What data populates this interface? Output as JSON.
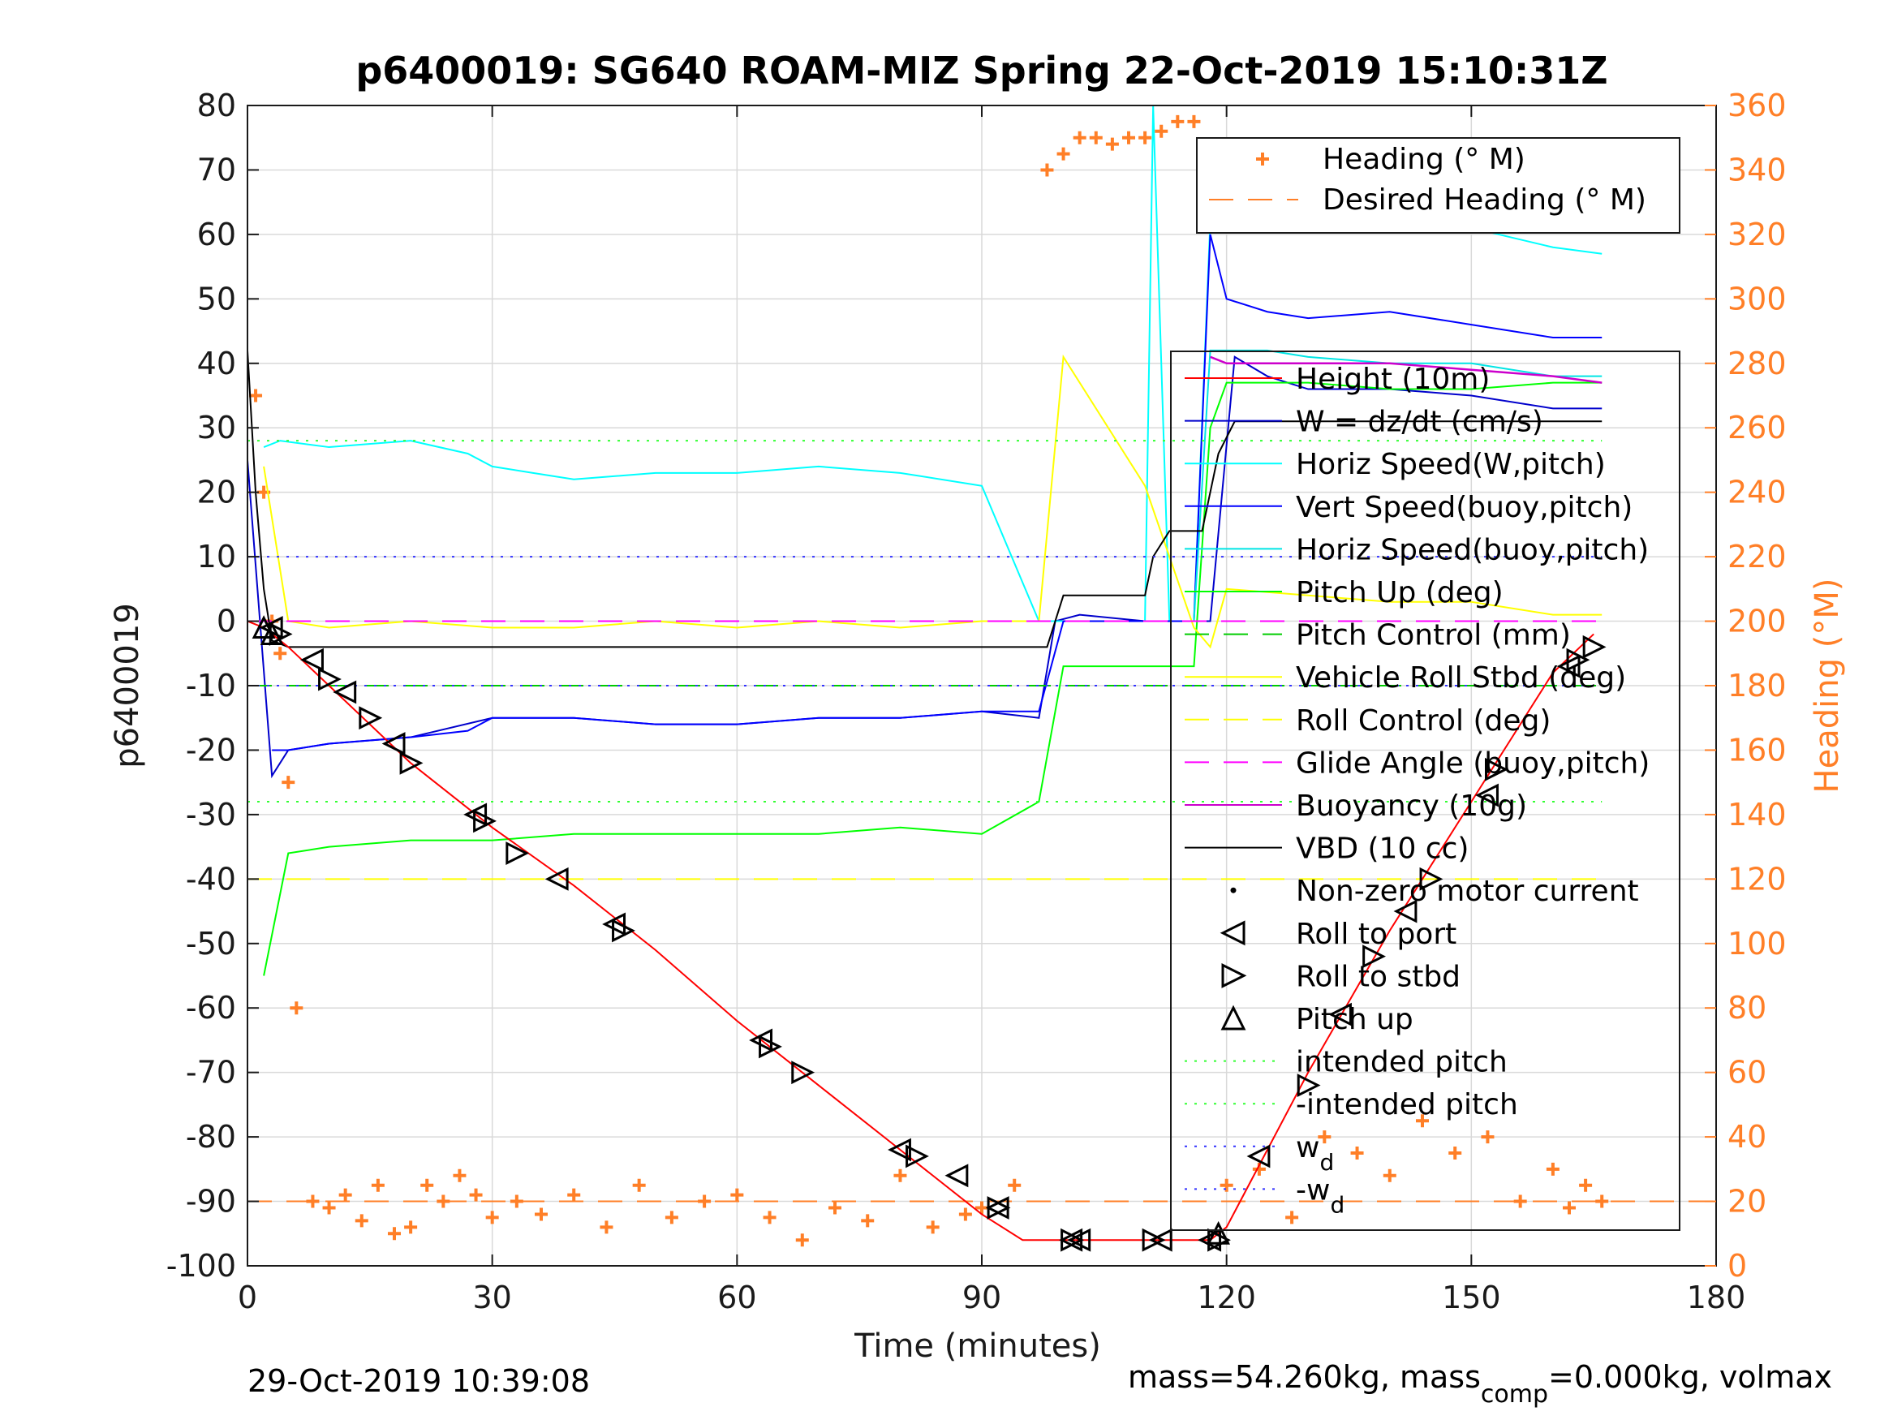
{
  "chart_data": {
    "type": "line",
    "title": "p6400019: SG640 ROAM-MIZ Spring 22-Oct-2019 15:10:31Z",
    "xlabel": "Time (minutes)",
    "ylabel": "p6400019",
    "ylabel_right": "Heading (°M)",
    "xlim": [
      0,
      180
    ],
    "ylim": [
      -100,
      80
    ],
    "ylim_right": [
      0,
      360
    ],
    "x_ticks": [
      0,
      30,
      60,
      90,
      120,
      150,
      180
    ],
    "y_ticks": [
      80,
      70,
      60,
      50,
      40,
      30,
      20,
      10,
      0,
      -10,
      -20,
      -30,
      -40,
      -50,
      -60,
      -70,
      -80,
      -90,
      -100
    ],
    "y_right_ticks": [
      360,
      340,
      320,
      300,
      280,
      260,
      240,
      220,
      200,
      180,
      160,
      140,
      120,
      100,
      80,
      60,
      40,
      20,
      0
    ],
    "grid": true,
    "colors": {
      "height": "#ff0000",
      "w": "#0000cc",
      "horiz_w": "#00ffff",
      "vert_buoy": "#0000ff",
      "horiz_buoy": "#00e5e5",
      "pitch_up": "#00ff00",
      "pitch_control": "#00cc00",
      "roll": "#ffff00",
      "glide": "#ff00ff",
      "buoyancy": "#cc00cc",
      "vbd": "#000000",
      "heading": "#ff7f27",
      "intended_pitch": "#33ff33",
      "wd": "#3333ff"
    },
    "series": [
      {
        "name": "Height (10m)",
        "x": [
          0,
          2,
          5,
          10,
          20,
          30,
          40,
          50,
          60,
          70,
          80,
          90,
          95,
          100,
          110,
          118,
          120,
          125,
          130,
          140,
          150,
          160,
          165
        ],
        "y": [
          0,
          -1,
          -4,
          -10,
          -22,
          -32,
          -41,
          -51,
          -62,
          -72,
          -82,
          -92,
          -96,
          -96,
          -96,
          -96,
          -94,
          -82,
          -70,
          -48,
          -28,
          -8,
          -2
        ]
      },
      {
        "name": "W = dz/dt (cm/s)",
        "x": [
          0,
          3,
          5,
          10,
          20,
          30,
          40,
          50,
          60,
          70,
          80,
          90,
          97,
          99,
          102,
          110,
          115,
          118,
          121,
          125,
          130,
          140,
          150,
          160,
          166
        ],
        "y": [
          25,
          -24,
          -20,
          -19,
          -18,
          -15,
          -15,
          -16,
          -16,
          -15,
          -15,
          -14,
          -15,
          0,
          1,
          0,
          0,
          0,
          41,
          38,
          36,
          36,
          35,
          33,
          33
        ]
      },
      {
        "name": "Horiz Speed(W,pitch)",
        "x": [
          2,
          4,
          10,
          20,
          27,
          30,
          35,
          40,
          50,
          60,
          70,
          80,
          90,
          97,
          100,
          110,
          111,
          113,
          116,
          118,
          120,
          125,
          130,
          140,
          150,
          160,
          166
        ],
        "y": [
          27,
          28,
          27,
          28,
          26,
          24,
          23,
          22,
          23,
          23,
          24,
          23,
          21,
          0,
          0,
          0,
          80,
          0,
          0,
          62,
          63,
          62,
          62,
          62,
          61,
          58,
          57
        ]
      },
      {
        "name": "Vert Speed(buoy,pitch)",
        "x": [
          3,
          5,
          10,
          20,
          27,
          30,
          40,
          50,
          60,
          70,
          80,
          90,
          97,
          100,
          110,
          116,
          118,
          120,
          125,
          130,
          140,
          150,
          160,
          166
        ],
        "y": [
          -20,
          -20,
          -19,
          -18,
          -17,
          -15,
          -15,
          -16,
          -16,
          -15,
          -15,
          -14,
          -14,
          0,
          0,
          0,
          60,
          50,
          48,
          47,
          48,
          46,
          44,
          44
        ]
      },
      {
        "name": "Horiz Speed(buoy,pitch)",
        "x": [
          116,
          118,
          120,
          125,
          130,
          140,
          150,
          160,
          166
        ],
        "y": [
          0,
          42,
          42,
          42,
          41,
          40,
          40,
          38,
          38
        ]
      },
      {
        "name": "Pitch Up (deg)",
        "x": [
          2,
          5,
          10,
          20,
          30,
          40,
          50,
          60,
          70,
          80,
          90,
          97,
          100,
          110,
          116,
          118,
          120,
          130,
          140,
          150,
          160,
          166
        ],
        "y": [
          -55,
          -36,
          -35,
          -34,
          -34,
          -33,
          -33,
          -33,
          -33,
          -32,
          -33,
          -28,
          -7,
          -7,
          -7,
          30,
          37,
          37,
          36,
          36,
          37,
          37
        ]
      },
      {
        "name": "Pitch Control (mm)",
        "x": [
          0,
          166
        ],
        "y": [
          -10,
          -10
        ]
      },
      {
        "name": "Vehicle Roll Stbd (deg)",
        "x": [
          2,
          5,
          10,
          20,
          30,
          40,
          50,
          60,
          70,
          80,
          90,
          97,
          100,
          110,
          116,
          118,
          120,
          130,
          140,
          150,
          160,
          166
        ],
        "y": [
          24,
          0,
          -1,
          0,
          -1,
          -1,
          0,
          -1,
          0,
          -1,
          0,
          0,
          41,
          21,
          -1,
          -4,
          5,
          4,
          3,
          3,
          1,
          1
        ]
      },
      {
        "name": "Roll Control (deg)",
        "x": [
          0,
          166
        ],
        "y": [
          -40,
          -40
        ]
      },
      {
        "name": "Glide Angle (buoy,pitch)",
        "x": [
          0,
          166
        ],
        "y": [
          0,
          0
        ]
      },
      {
        "name": "Buoyancy (10g)",
        "x": [
          118,
          120,
          140,
          150,
          160,
          166
        ],
        "y": [
          41,
          40,
          40,
          39,
          38,
          37
        ]
      },
      {
        "name": "VBD (10 cc)",
        "x": [
          0,
          1,
          2,
          3,
          5,
          98,
          100,
          110,
          111,
          113,
          117,
          118,
          119,
          121,
          125,
          130,
          140,
          150,
          160,
          166
        ],
        "y": [
          42,
          20,
          5,
          -3,
          -4,
          -4,
          4,
          4,
          10,
          14,
          14,
          20,
          26,
          31,
          31,
          31,
          31,
          31,
          31,
          31
        ]
      },
      {
        "name": "Non-zero motor current",
        "x": [],
        "y": []
      },
      {
        "name": "Roll to port",
        "x": [
          3,
          8,
          12,
          18,
          28,
          38,
          45,
          63,
          80,
          87,
          92,
          101,
          102,
          112,
          118,
          124,
          134,
          142,
          152,
          162
        ],
        "y": [
          -1,
          -6,
          -11,
          -19,
          -30,
          -40,
          -47,
          -65,
          -82,
          -86,
          -91,
          -96,
          -96,
          -96,
          -96,
          -83,
          -61,
          -45,
          -27,
          -7
        ]
      },
      {
        "name": "Roll to stbd",
        "x": [
          4,
          10,
          15,
          20,
          29,
          33,
          46,
          64,
          68,
          82,
          92,
          101,
          111,
          119,
          130,
          138,
          145,
          153,
          163,
          165
        ],
        "y": [
          -2,
          -9,
          -15,
          -22,
          -31,
          -36,
          -48,
          -66,
          -70,
          -83,
          -91,
          -96,
          -96,
          -96,
          -72,
          -52,
          -40,
          -23,
          -6,
          -4
        ]
      },
      {
        "name": "Pitch up",
        "x": [
          2,
          3,
          119
        ],
        "y": [
          -1,
          -2,
          -95
        ]
      },
      {
        "name": "intended pitch",
        "x": [
          0,
          166
        ],
        "y": [
          28,
          28
        ]
      },
      {
        "name": "-intended pitch",
        "x": [
          0,
          166
        ],
        "y": [
          -28,
          -28
        ]
      },
      {
        "name": "w_d",
        "x": [
          0,
          166
        ],
        "y": [
          10,
          10
        ]
      },
      {
        "name": "-w_d",
        "x": [
          0,
          166
        ],
        "y": [
          -10,
          -10
        ]
      }
    ],
    "heading": {
      "name": "Heading (° M)",
      "x": [
        1,
        2,
        3,
        4,
        5,
        6,
        8,
        10,
        12,
        14,
        16,
        18,
        20,
        22,
        24,
        26,
        28,
        30,
        33,
        36,
        40,
        44,
        48,
        52,
        56,
        60,
        64,
        68,
        72,
        76,
        80,
        84,
        88,
        90,
        94,
        98,
        100,
        102,
        104,
        106,
        108,
        110,
        112,
        114,
        116,
        120,
        124,
        128,
        132,
        136,
        140,
        144,
        148,
        152,
        156,
        160,
        162,
        164,
        166
      ],
      "y": [
        270,
        240,
        200,
        190,
        150,
        80,
        20,
        18,
        22,
        14,
        25,
        10,
        12,
        25,
        20,
        28,
        22,
        15,
        20,
        16,
        22,
        12,
        25,
        15,
        20,
        22,
        15,
        8,
        18,
        14,
        28,
        12,
        16,
        18,
        25,
        340,
        345,
        350,
        350,
        348,
        350,
        350,
        352,
        355,
        355,
        25,
        30,
        15,
        40,
        35,
        28,
        45,
        35,
        40,
        20,
        30,
        18,
        25,
        20
      ]
    },
    "desired_heading": {
      "name": "Desired Heading (° M)",
      "value": 20
    },
    "legend_top": [
      "Heading (° M)",
      "Desired Heading (° M)"
    ],
    "legend_main": [
      "Height (10m)",
      "W = dz/dt (cm/s)",
      "Horiz Speed(W,pitch)",
      "Vert Speed(buoy,pitch)",
      "Horiz Speed(buoy,pitch)",
      "Pitch Up (deg)",
      "Pitch Control (mm)",
      "Vehicle Roll Stbd (deg)",
      "Roll Control (deg)",
      "Glide Angle (buoy,pitch)",
      "Buoyancy (10g)",
      "VBD (10 cc)",
      "Non-zero motor current",
      "Roll to port",
      "Roll to stbd",
      "Pitch up",
      "intended pitch",
      "-intended pitch",
      "w",
      "-w"
    ],
    "legend_placement": "right"
  },
  "footer": {
    "timestamp": "29-Oct-2019 10:39:08",
    "mass_prefix": "mass=54.260kg, mass",
    "mass_sub": "comp",
    "mass_suffix": "=0.000kg, volmax"
  }
}
